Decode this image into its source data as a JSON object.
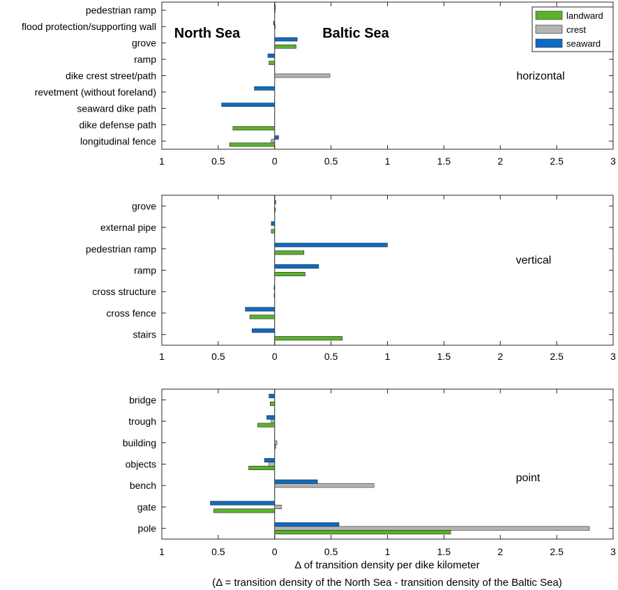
{
  "colors": {
    "landward": "#5bb12a",
    "crest": "#b4b4b4",
    "seaward": "#0c6cc4",
    "axis": "#262626"
  },
  "legend": {
    "landward": "landward",
    "crest": "crest",
    "seaward": "seaward"
  },
  "regions": {
    "north": "North Sea",
    "baltic": "Baltic Sea"
  },
  "xlabel": {
    "line1": "Δ of transition density per dike kilometer",
    "line2": "(Δ = transition density of the North Sea - transition density of the Baltic Sea)"
  },
  "chart_data": [
    {
      "type": "bar",
      "orientation": "horizontal",
      "title": "horizontal",
      "xlim": [
        -1,
        3
      ],
      "xticks": [
        -1,
        -0.5,
        0,
        0.5,
        1,
        1.5,
        2,
        2.5,
        3
      ],
      "xtick_labels": [
        "1",
        "0.5",
        "0",
        "0.5",
        "1",
        "1.5",
        "2",
        "2.5",
        "3"
      ],
      "categories": [
        "pedestrian ramp",
        "flood protection/supporting wall",
        "grove",
        "ramp",
        "dike crest street/path",
        "revetment (without foreland)",
        "seaward dike path",
        "dike defense path",
        "longitudinal fence"
      ],
      "series": [
        {
          "name": "seaward",
          "values": [
            0.005,
            -0.01,
            0.2,
            -0.06,
            0,
            -0.18,
            -0.47,
            0,
            0.035
          ]
        },
        {
          "name": "crest",
          "values": [
            0.005,
            0.003,
            0,
            0,
            0.49,
            0,
            0,
            0,
            -0.03
          ]
        },
        {
          "name": "landward",
          "values": [
            0,
            0,
            0.19,
            -0.05,
            0,
            0,
            0,
            -0.37,
            -0.4
          ]
        }
      ]
    },
    {
      "type": "bar",
      "orientation": "horizontal",
      "title": "vertical",
      "xlim": [
        -1,
        3
      ],
      "xticks": [
        -1,
        -0.5,
        0,
        0.5,
        1,
        1.5,
        2,
        2.5,
        3
      ],
      "xtick_labels": [
        "1",
        "0.5",
        "0",
        "0.5",
        "1",
        "1.5",
        "2",
        "2.5",
        "3"
      ],
      "categories": [
        "grove",
        "external pipe",
        "pedestrian ramp",
        "ramp",
        "cross structure",
        "cross fence",
        "stairs"
      ],
      "series": [
        {
          "name": "seaward",
          "values": [
            0.01,
            -0.03,
            1.0,
            0.39,
            -0.005,
            -0.26,
            -0.2
          ]
        },
        {
          "name": "crest",
          "values": [
            0,
            0,
            0,
            0,
            0,
            0,
            0
          ]
        },
        {
          "name": "landward",
          "values": [
            0.005,
            -0.03,
            0.26,
            0.27,
            -0.005,
            -0.22,
            0.6
          ]
        }
      ]
    },
    {
      "type": "bar",
      "orientation": "horizontal",
      "title": "point",
      "xlim": [
        -1,
        3
      ],
      "xticks": [
        -1,
        -0.5,
        0,
        0.5,
        1,
        1.5,
        2,
        2.5,
        3
      ],
      "xtick_labels": [
        "1",
        "0.5",
        "0",
        "0.5",
        "1",
        "1.5",
        "2",
        "2.5",
        "3"
      ],
      "categories": [
        "bridge",
        "trough",
        "building",
        "objects",
        "bench",
        "gate",
        "pole"
      ],
      "series": [
        {
          "name": "seaward",
          "values": [
            -0.05,
            -0.07,
            0,
            -0.09,
            0.38,
            -0.57,
            0.57
          ]
        },
        {
          "name": "crest",
          "values": [
            0,
            -0.03,
            0.02,
            -0.05,
            0.88,
            0.06,
            2.79
          ]
        },
        {
          "name": "landward",
          "values": [
            -0.04,
            -0.15,
            0.01,
            -0.23,
            0,
            -0.54,
            1.56
          ]
        }
      ]
    }
  ]
}
